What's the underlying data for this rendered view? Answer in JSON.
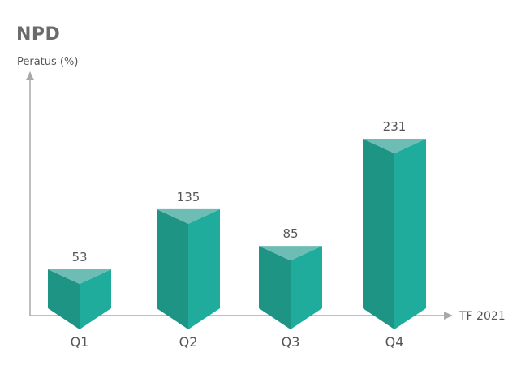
{
  "chart_data": {
    "type": "bar",
    "title": "NPD",
    "ylabel": "Peratus (%)",
    "xlabel": "TF 2021",
    "categories": [
      "Q1",
      "Q2",
      "Q3",
      "Q4"
    ],
    "values": [
      53,
      135,
      85,
      231
    ],
    "ylim": [
      0,
      231
    ],
    "grid": false,
    "legend": "none",
    "colors": {
      "bar_front_left": "#1e9485",
      "bar_front_right": "#1fac9c",
      "bar_top": "#6dbdb4",
      "axis": "#a9a9a9",
      "text": "#555555",
      "title": "#6b6b6b"
    }
  }
}
